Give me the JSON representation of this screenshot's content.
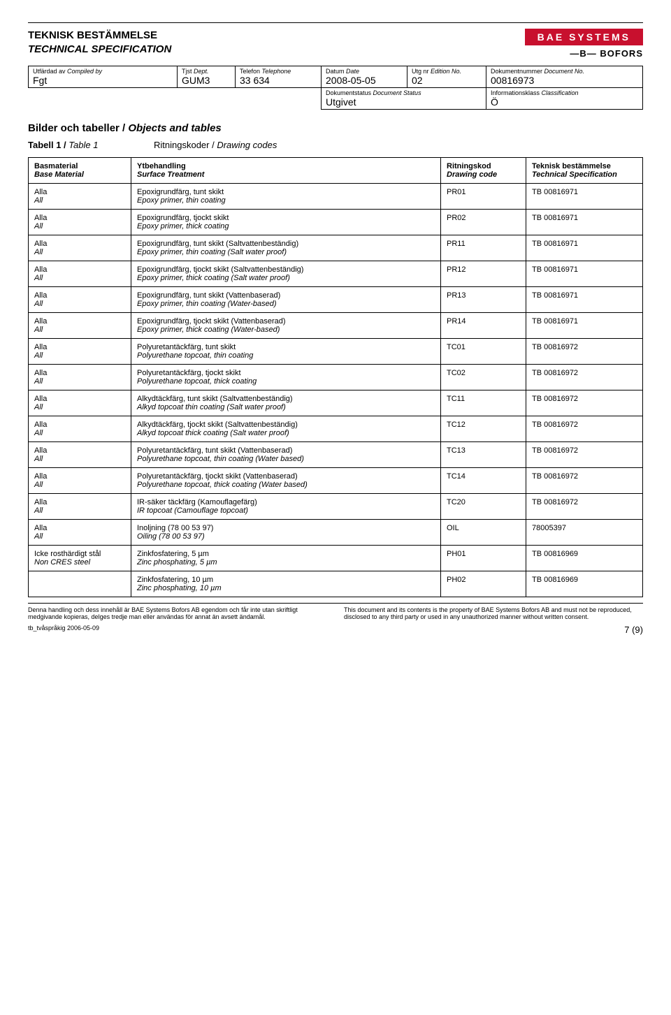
{
  "header": {
    "title_sv": "TEKNISK BESTÄMMELSE",
    "title_en": "TECHNICAL SPECIFICATION",
    "logo_text": "BAE SYSTEMS",
    "logo_sub": "—B— BOFORS",
    "logo_bg": "#c8102e",
    "logo_fg": "#ffffff"
  },
  "meta": {
    "labels": {
      "compiled": "Utfärdad av Compiled by",
      "dept": "Tjst Dept.",
      "phone": "Telefon Telephone",
      "date": "Datum Date",
      "edition": "Utg nr Edition No.",
      "docno": "Dokumentnummer Document No.",
      "status": "Dokumentstatus Document Status",
      "class": "Informationsklass Classification"
    },
    "values": {
      "compiled": "Fgt",
      "dept": "GUM3",
      "phone": "33 634",
      "date": "2008-05-05",
      "edition": "02",
      "docno": "00816973",
      "status": "Utgivet",
      "class": "Ö"
    }
  },
  "section": {
    "heading_sv": "Bilder och tabeller /",
    "heading_en": "Objects and tables",
    "table_label_sv": "Tabell 1 /",
    "table_label_en": "Table 1",
    "table_caption_sv": "Ritningskoder /",
    "table_caption_en": "Drawing codes"
  },
  "table": {
    "headers": {
      "base_sv": "Basmaterial",
      "base_en": "Base Material",
      "treat_sv": "Ytbehandling",
      "treat_en": "Surface Treatment",
      "code_sv": "Ritningskod",
      "code_en": "Drawing code",
      "spec_sv": "Teknisk bestämmelse",
      "spec_en": "Technical Specification"
    },
    "rows": [
      {
        "base_sv": "Alla",
        "base_en": "All",
        "treat_sv": "Epoxigrundfärg, tunt skikt",
        "treat_en": "Epoxy primer, thin coating",
        "code": "PR01",
        "spec": "TB 00816971"
      },
      {
        "base_sv": "Alla",
        "base_en": "All",
        "treat_sv": "Epoxigrundfärg, tjockt skikt",
        "treat_en": "Epoxy primer, thick coating",
        "code": "PR02",
        "spec": "TB 00816971"
      },
      {
        "base_sv": "Alla",
        "base_en": "All",
        "treat_sv": "Epoxigrundfärg, tunt skikt    (Saltvattenbeständig)",
        "treat_en": "Epoxy primer, thin coating   (Salt water proof)",
        "code": "PR11",
        "spec": "TB 00816971"
      },
      {
        "base_sv": "Alla",
        "base_en": "All",
        "treat_sv": "Epoxigrundfärg, tjockt skikt  (Saltvattenbeständig)",
        "treat_en": "Epoxy primer, thick coating  (Salt water proof)",
        "code": "PR12",
        "spec": "TB 00816971"
      },
      {
        "base_sv": "Alla",
        "base_en": "All",
        "treat_sv": "Epoxigrundfärg, tunt skikt    (Vattenbaserad)",
        "treat_en": "Epoxy primer, thin coating   (Water-based)",
        "code": "PR13",
        "spec": "TB 00816971"
      },
      {
        "base_sv": "Alla",
        "base_en": "All",
        "treat_sv": "Epoxigrundfärg, tjockt skikt  (Vattenbaserad)",
        "treat_en": "Epoxy primer, thick coating  (Water-based)",
        "code": "PR14",
        "spec": "TB 00816971"
      },
      {
        "base_sv": "Alla",
        "base_en": "All",
        "treat_sv": "Polyuretantäckfärg, tunt skikt",
        "treat_en": "Polyurethane topcoat, thin coating",
        "code": "TC01",
        "spec": "TB 00816972"
      },
      {
        "base_sv": "Alla",
        "base_en": "All",
        "treat_sv": "Polyuretantäckfärg, tjockt skikt",
        "treat_en": "Polyurethane topcoat, thick coating",
        "code": "TC02",
        "spec": "TB 00816972"
      },
      {
        "base_sv": "Alla",
        "base_en": "All",
        "treat_sv": "Alkydtäckfärg, tunt skikt    (Saltvattenbeständig)",
        "treat_en": "Alkyd topcoat thin coating   (Salt water proof)",
        "code": "TC11",
        "spec": "TB 00816972"
      },
      {
        "base_sv": "Alla",
        "base_en": "All",
        "treat_sv": "Alkydtäckfärg, tjockt skikt    (Saltvattenbeständig)",
        "treat_en": "Alkyd topcoat thick coating   (Salt water proof)",
        "code": "TC12",
        "spec": "TB 00816972"
      },
      {
        "base_sv": "Alla",
        "base_en": "All",
        "treat_sv": "Polyuretantäckfärg, tunt skikt    (Vattenbaserad)",
        "treat_en": "Polyurethane topcoat, thin coating (Water based)",
        "code": "TC13",
        "spec": "TB 00816972"
      },
      {
        "base_sv": "Alla",
        "base_en": "All",
        "treat_sv": "Polyuretantäckfärg, tjockt skikt    (Vattenbaserad)",
        "treat_en": "Polyurethane topcoat, thick coating (Water based)",
        "code": "TC14",
        "spec": "TB 00816972"
      },
      {
        "base_sv": "Alla",
        "base_en": "All",
        "treat_sv": "IR-säker täckfärg (Kamouflagefärg)",
        "treat_en": "IR topcoat (Camouflage topcoat)",
        "code": "TC20",
        "spec": "TB 00816972"
      },
      {
        "base_sv": "Alla",
        "base_en": "All",
        "treat_sv": "Inoljning   (78 00 53 97)",
        "treat_en": "Oiling       (78 00 53 97)",
        "code": "OIL",
        "spec": "78005397"
      },
      {
        "base_sv": "Icke rosthärdigt stål",
        "base_en": "Non CRES steel",
        "treat_sv": "Zinkfosfatering, 5 µm",
        "treat_en": "Zinc phosphating, 5 µm",
        "code": "PH01",
        "spec": "TB 00816969"
      },
      {
        "base_sv": "",
        "base_en": "",
        "treat_sv": "Zinkfosfatering, 10 µm",
        "treat_en": "Zinc phosphating, 10 µm",
        "code": "PH02",
        "spec": "TB 00816969"
      }
    ]
  },
  "footer": {
    "left": "Denna handling och dess innehåll är BAE Systems Bofors AB egendom och får inte utan skriftligt medgivande kopieras, delges tredje man eller användas för annat än avsett ändamål.",
    "right": "This document and its contents is the property of BAE Systems Bofors AB and must not be reproduced, disclosed to any third party or used in any unauthorized manner without written consent.",
    "template": "tb_tvåspråkig 2006-05-09",
    "page": "7 (9)"
  }
}
